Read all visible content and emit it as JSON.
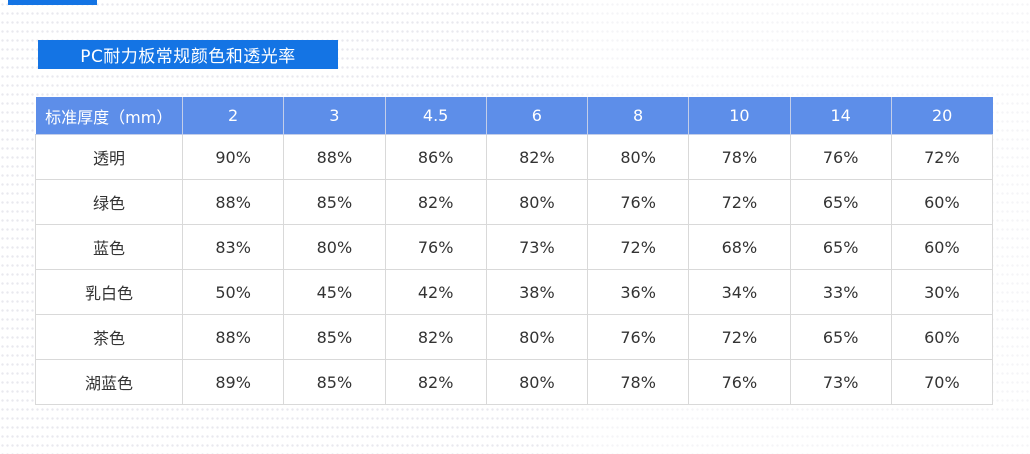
{
  "title_banner": {
    "text": "PC耐力板常规颜色和透光率"
  },
  "colors": {
    "accent_blue": "#1474e4",
    "header_blue": "#5d8ee9",
    "body_border_gray": "#d9d9d9",
    "body_text": "#333333"
  },
  "chart_data": {
    "type": "table",
    "title": "PC耐力板常规颜色和透光率",
    "header_label": "标准厚度（mm）",
    "columns": [
      "2",
      "3",
      "4.5",
      "6",
      "8",
      "10",
      "14",
      "20"
    ],
    "rows": [
      {
        "label": "透明",
        "values": [
          "90%",
          "88%",
          "86%",
          "82%",
          "80%",
          "78%",
          "76%",
          "72%"
        ]
      },
      {
        "label": "绿色",
        "values": [
          "88%",
          "85%",
          "82%",
          "80%",
          "76%",
          "72%",
          "65%",
          "60%"
        ]
      },
      {
        "label": "蓝色",
        "values": [
          "83%",
          "80%",
          "76%",
          "73%",
          "72%",
          "68%",
          "65%",
          "60%"
        ]
      },
      {
        "label": "乳白色",
        "values": [
          "50%",
          "45%",
          "42%",
          "38%",
          "36%",
          "34%",
          "33%",
          "30%"
        ]
      },
      {
        "label": "茶色",
        "values": [
          "88%",
          "85%",
          "82%",
          "80%",
          "76%",
          "72%",
          "65%",
          "60%"
        ]
      },
      {
        "label": "湖蓝色",
        "values": [
          "89%",
          "85%",
          "82%",
          "80%",
          "78%",
          "76%",
          "73%",
          "70%"
        ]
      }
    ]
  }
}
